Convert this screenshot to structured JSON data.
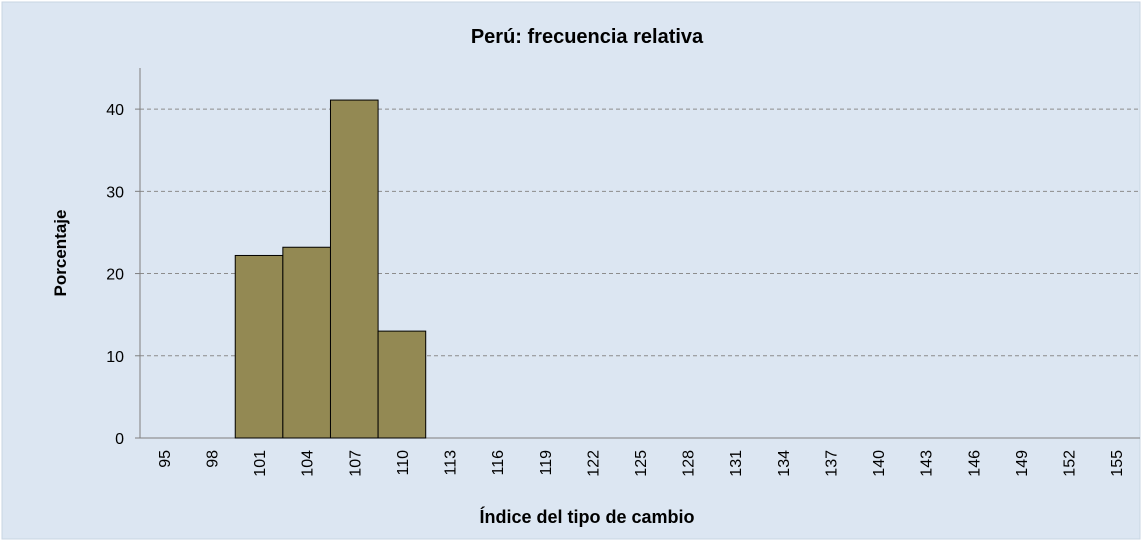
{
  "chart_data": {
    "type": "bar",
    "title": "Perú: frecuencia relativa",
    "x_label": "Índice del tipo de cambio",
    "y_label": "Porcentaje",
    "categories": [
      "95",
      "98",
      "101",
      "104",
      "107",
      "110",
      "113",
      "116",
      "119",
      "122",
      "125",
      "128",
      "131",
      "134",
      "137",
      "140",
      "143",
      "146",
      "149",
      "152",
      "155"
    ],
    "values": [
      0,
      0,
      22.2,
      23.2,
      41.1,
      13.0,
      0,
      0,
      0,
      0,
      0,
      0,
      0,
      0,
      0,
      0,
      0,
      0,
      0,
      0,
      0
    ],
    "color": "#938953",
    "ylim": [
      0,
      45
    ],
    "yticks": [
      0,
      10,
      20,
      30,
      40
    ],
    "grid": true
  }
}
